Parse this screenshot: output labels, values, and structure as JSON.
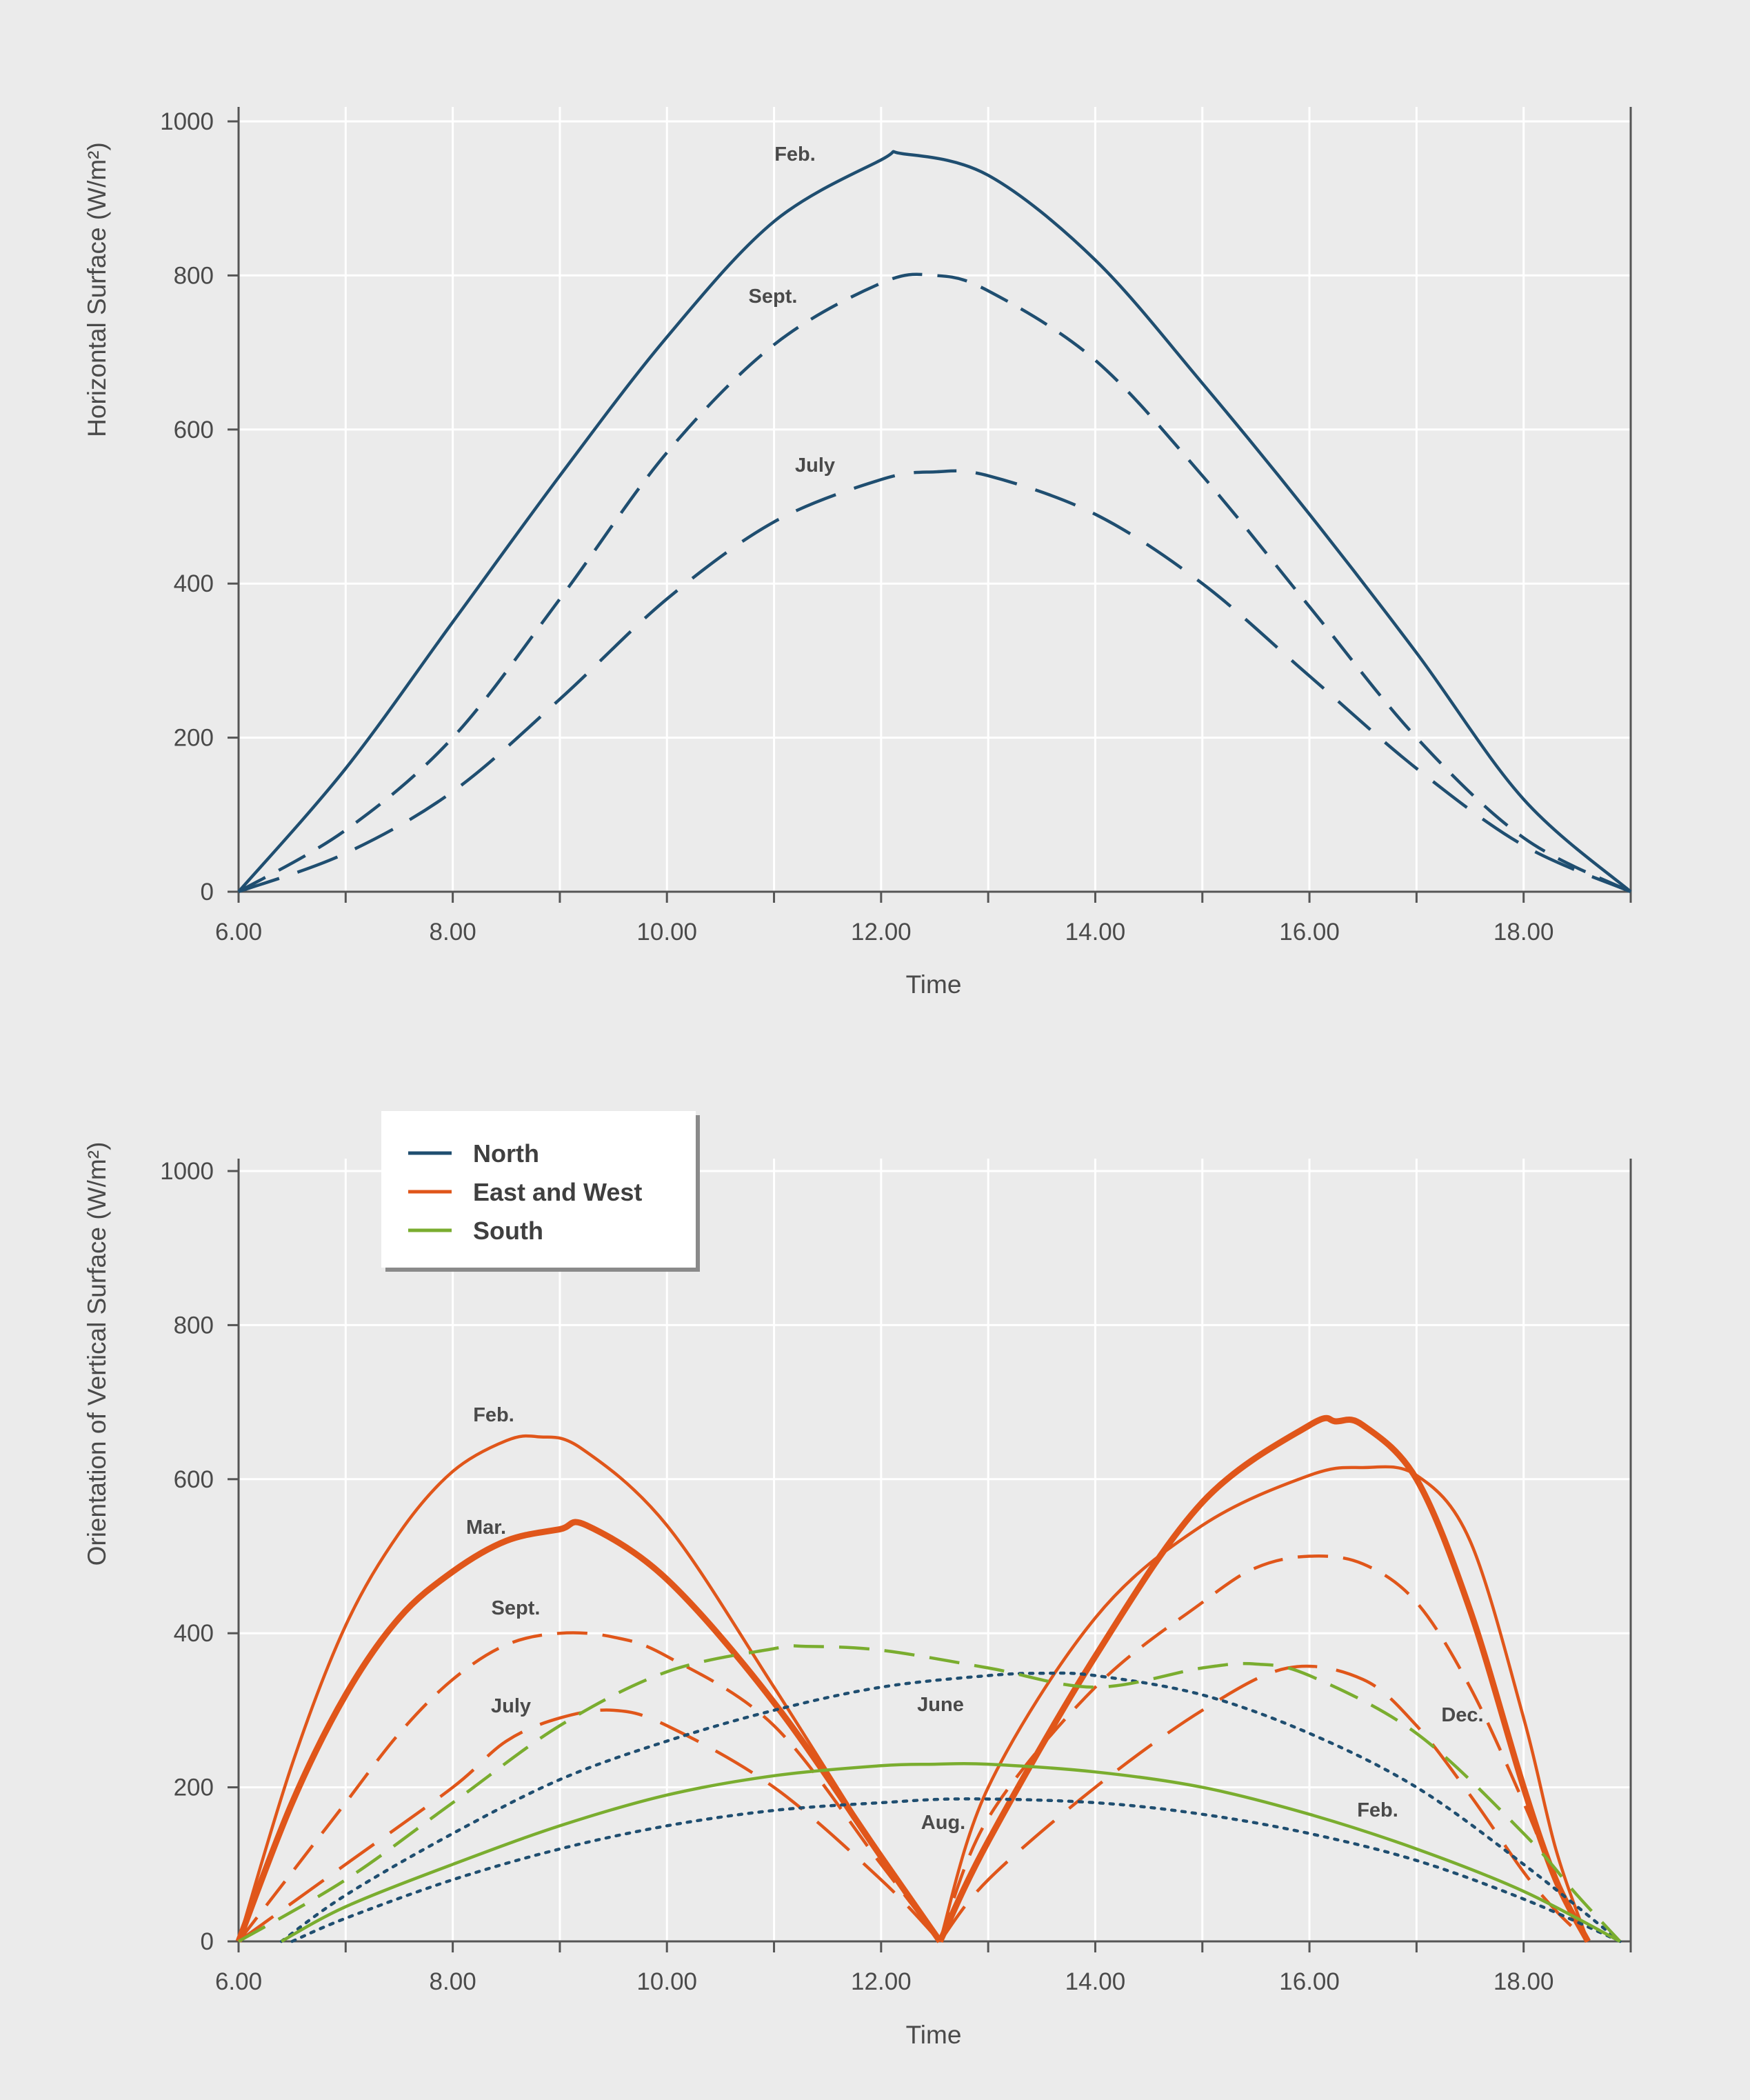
{
  "colors": {
    "background": "#ebebeb",
    "grid": "#ffffff",
    "axis": "#555555",
    "text": "#4a4a4a",
    "north": "#1f4e70",
    "east_west": "#e0561a",
    "south": "#7aad2f"
  },
  "chart_data": [
    {
      "type": "line",
      "title": "",
      "xlabel": "Time",
      "ylabel": "Horizontal Surface (W/m²)",
      "xlim": [
        6,
        19
      ],
      "ylim": [
        0,
        1000
      ],
      "x_ticks": [
        6,
        8,
        10,
        12,
        14,
        16,
        18
      ],
      "x_tick_labels": [
        "6.00",
        "8.00",
        "10.00",
        "12.00",
        "14.00",
        "16.00",
        "18.00"
      ],
      "y_ticks": [
        0,
        200,
        400,
        600,
        800,
        1000
      ],
      "y_tick_labels": [
        "0",
        "200",
        "400",
        "600",
        "800",
        "1000"
      ],
      "grid": true,
      "series": [
        {
          "name": "Feb.",
          "orientation": "North",
          "style": "solid",
          "x": [
            6,
            7,
            8,
            9,
            10,
            11,
            12,
            12.2,
            13,
            14,
            15,
            16,
            17,
            18,
            19
          ],
          "y": [
            0,
            160,
            350,
            540,
            720,
            870,
            950,
            958,
            930,
            820,
            660,
            490,
            310,
            120,
            0
          ]
        },
        {
          "name": "Sept.",
          "orientation": "North",
          "style": "dashed",
          "x": [
            6,
            7,
            8,
            9,
            10,
            11,
            12,
            12.5,
            13,
            14,
            15,
            16,
            17,
            18,
            19
          ],
          "y": [
            0,
            80,
            200,
            380,
            570,
            710,
            790,
            800,
            780,
            690,
            540,
            370,
            200,
            70,
            0
          ]
        },
        {
          "name": "July",
          "orientation": "North",
          "style": "long-dashed",
          "x": [
            6,
            7,
            8,
            9,
            10,
            11,
            12,
            12.5,
            13,
            14,
            15,
            16,
            17,
            18,
            19
          ],
          "y": [
            0,
            50,
            130,
            250,
            380,
            480,
            535,
            545,
            540,
            490,
            400,
            280,
            160,
            60,
            0
          ]
        }
      ],
      "annotations": [
        "Feb.",
        "Sept.",
        "July"
      ]
    },
    {
      "type": "line",
      "title": "",
      "xlabel": "Time",
      "ylabel": "Orientation of Vertical Surface (W/m²)",
      "xlim": [
        6,
        19
      ],
      "ylim": [
        0,
        1000
      ],
      "x_ticks": [
        6,
        8,
        10,
        12,
        14,
        16,
        18
      ],
      "x_tick_labels": [
        "6.00",
        "8.00",
        "10.00",
        "12.00",
        "14.00",
        "16.00",
        "18.00"
      ],
      "y_ticks": [
        0,
        200,
        400,
        600,
        800,
        1000
      ],
      "y_tick_labels": [
        "0",
        "200",
        "400",
        "600",
        "800",
        "1000"
      ],
      "grid": true,
      "legend": {
        "placement": "top-left",
        "entries": [
          {
            "label": "North",
            "color_key": "north"
          },
          {
            "label": "East and West",
            "color_key": "east_west"
          },
          {
            "label": "South",
            "color_key": "south"
          }
        ]
      },
      "series": [
        {
          "name": "Feb. (East)",
          "orientation": "East and West",
          "style": "solid",
          "weight": "thin",
          "x": [
            6,
            6.5,
            7,
            7.5,
            8,
            8.5,
            8.8,
            9.2,
            10,
            11,
            12,
            12.55
          ],
          "y": [
            0,
            230,
            410,
            530,
            610,
            650,
            655,
            640,
            540,
            330,
            110,
            0
          ]
        },
        {
          "name": "Mar. (East)",
          "orientation": "East and West",
          "style": "solid",
          "weight": "bold",
          "x": [
            6,
            6.5,
            7,
            7.5,
            8,
            8.5,
            9,
            9.25,
            10,
            11,
            12,
            12.55
          ],
          "y": [
            0,
            180,
            320,
            420,
            480,
            520,
            535,
            540,
            470,
            310,
            110,
            0
          ]
        },
        {
          "name": "Sept. (East)",
          "orientation": "East and West",
          "style": "dashed",
          "weight": "thin",
          "x": [
            6,
            6.5,
            7,
            7.5,
            8,
            8.5,
            9,
            9.5,
            10,
            11,
            12,
            12.55
          ],
          "y": [
            0,
            90,
            180,
            270,
            340,
            385,
            400,
            395,
            370,
            280,
            100,
            0
          ]
        },
        {
          "name": "July (East)",
          "orientation": "East and West",
          "style": "long-dashed",
          "weight": "thin",
          "x": [
            6,
            7,
            8,
            8.5,
            9,
            9.5,
            10,
            11,
            12,
            12.55
          ],
          "y": [
            0,
            100,
            200,
            260,
            290,
            300,
            280,
            200,
            80,
            0
          ]
        },
        {
          "name": "Mar. (West)",
          "orientation": "East and West",
          "style": "solid",
          "weight": "bold",
          "x": [
            12.55,
            13,
            14,
            15,
            16,
            16.25,
            16.5,
            17,
            17.5,
            18,
            18.3,
            18.6
          ],
          "y": [
            0,
            130,
            370,
            570,
            670,
            675,
            670,
            600,
            430,
            200,
            80,
            0
          ]
        },
        {
          "name": "Feb. (West)",
          "orientation": "East and West",
          "style": "solid",
          "weight": "thin",
          "x": [
            12.55,
            13,
            14,
            15,
            16,
            16.5,
            17,
            17.5,
            18,
            18.3,
            18.6
          ],
          "y": [
            0,
            200,
            420,
            540,
            605,
            615,
            605,
            520,
            290,
            120,
            0
          ]
        },
        {
          "name": "Sept. (West)",
          "orientation": "East and West",
          "style": "dashed",
          "weight": "thin",
          "x": [
            12.55,
            13,
            14,
            15,
            15.5,
            16,
            16.5,
            17,
            17.5,
            18,
            18.3,
            18.6
          ],
          "y": [
            0,
            160,
            330,
            440,
            485,
            500,
            490,
            440,
            330,
            180,
            80,
            0
          ]
        },
        {
          "name": "July (West)",
          "orientation": "East and West",
          "style": "long-dashed",
          "weight": "thin",
          "x": [
            12.55,
            13,
            14,
            15,
            15.8,
            16.5,
            17,
            17.5,
            18,
            18.3,
            18.6
          ],
          "y": [
            0,
            80,
            200,
            300,
            355,
            340,
            280,
            190,
            90,
            40,
            0
          ]
        },
        {
          "name": "June",
          "orientation": "North",
          "style": "dotted",
          "x": [
            6.4,
            7,
            8,
            9,
            10,
            11,
            12,
            13,
            13.5,
            14,
            15,
            16,
            17,
            18,
            18.9
          ],
          "y": [
            0,
            60,
            140,
            210,
            260,
            300,
            330,
            345,
            348,
            345,
            320,
            270,
            200,
            100,
            0
          ]
        },
        {
          "name": "Aug.",
          "orientation": "North",
          "style": "dotted",
          "x": [
            6.5,
            7,
            8,
            9,
            10,
            11,
            12,
            12.8,
            14,
            15,
            16,
            17,
            18,
            18.9
          ],
          "y": [
            0,
            30,
            80,
            120,
            150,
            170,
            180,
            185,
            180,
            165,
            140,
            105,
            55,
            0
          ]
        },
        {
          "name": "Feb. (South)",
          "orientation": "South",
          "style": "solid",
          "x": [
            6.4,
            7,
            8,
            9,
            10,
            11,
            12,
            12.5,
            13,
            14,
            15,
            16,
            17,
            18,
            18.9
          ],
          "y": [
            0,
            45,
            100,
            150,
            190,
            215,
            228,
            230,
            230,
            220,
            200,
            165,
            120,
            65,
            0
          ]
        },
        {
          "name": "Dec.",
          "orientation": "South",
          "style": "dashed",
          "x": [
            6,
            7,
            8,
            9,
            10,
            11,
            11.3,
            12,
            13,
            14,
            15,
            15.5,
            16,
            17,
            18,
            18.5,
            18.9
          ],
          "y": [
            0,
            80,
            180,
            280,
            350,
            380,
            383,
            378,
            355,
            330,
            355,
            360,
            345,
            270,
            140,
            60,
            0
          ]
        }
      ],
      "annotations": [
        "Feb.",
        "Mar.",
        "Sept.",
        "July",
        "June",
        "Aug.",
        "Dec.",
        "Feb."
      ]
    }
  ]
}
